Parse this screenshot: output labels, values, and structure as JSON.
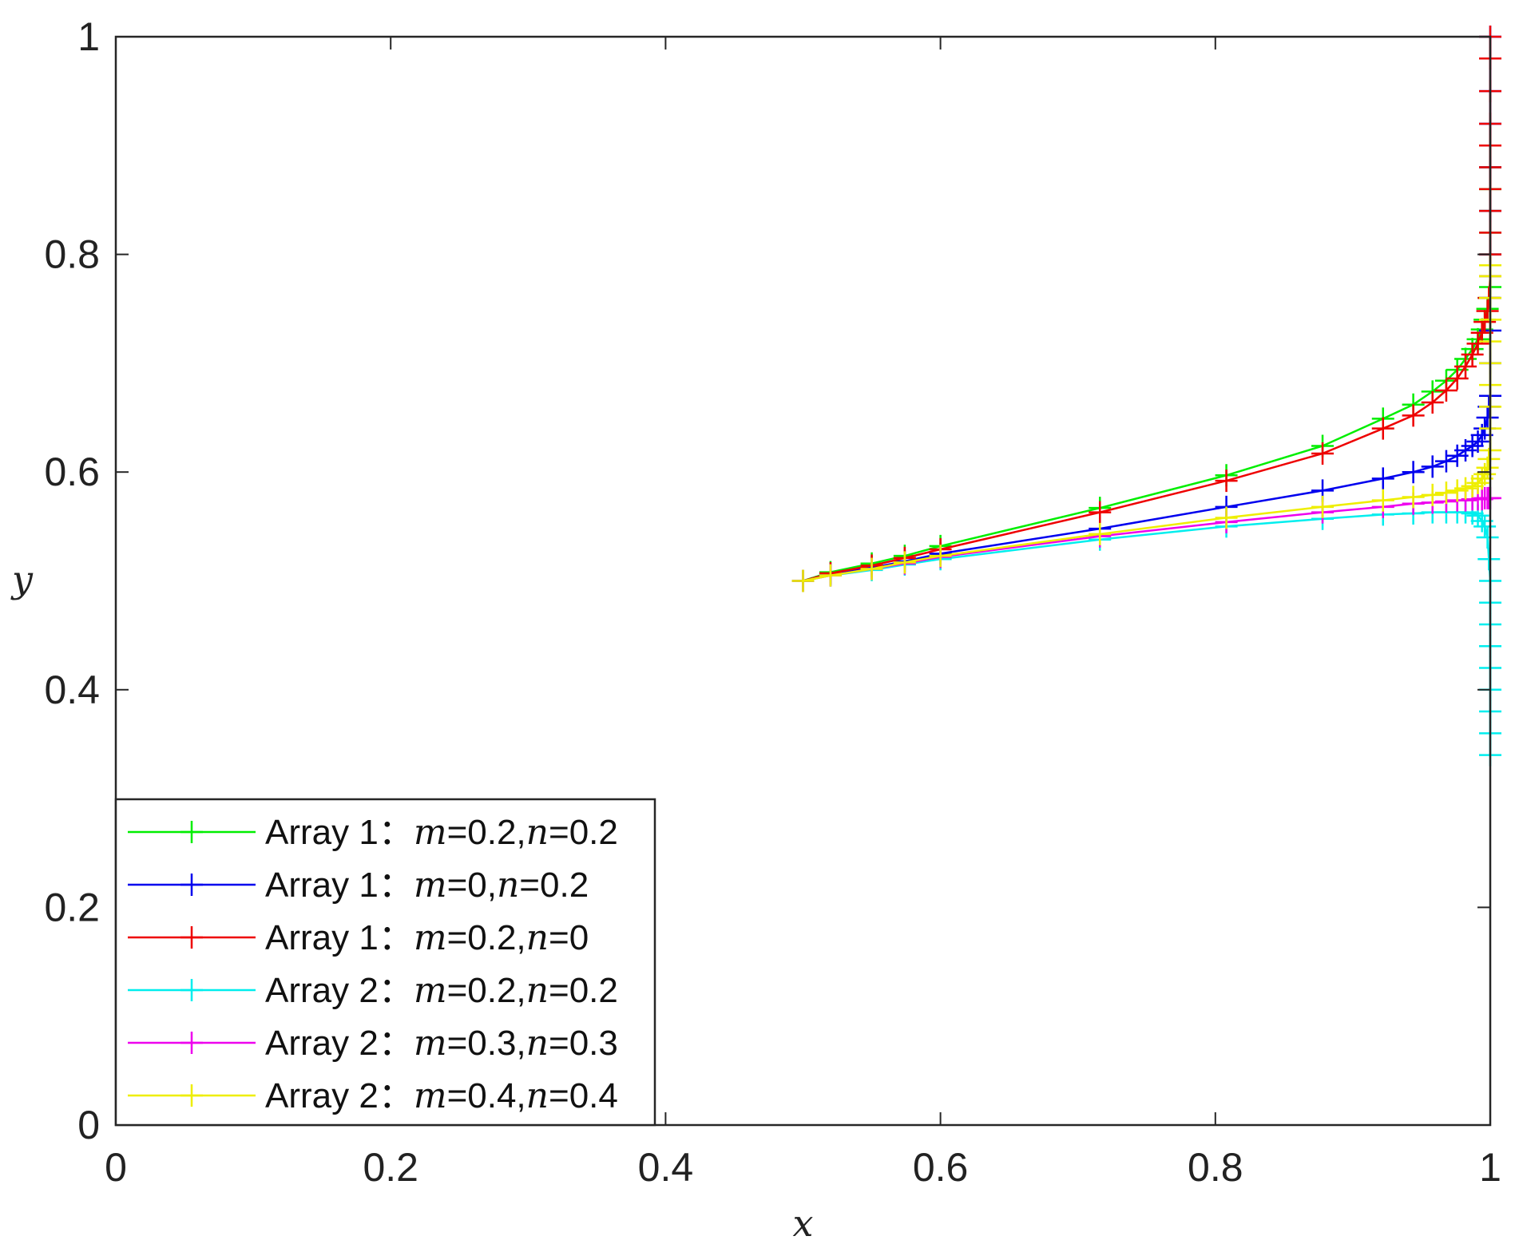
{
  "chart_data": {
    "type": "line",
    "xlabel": "x",
    "ylabel": "y",
    "xlim": [
      0,
      1
    ],
    "ylim": [
      0,
      1
    ],
    "xticks": [
      "0",
      "0.2",
      "0.4",
      "0.6",
      "0.8",
      "1"
    ],
    "yticks": [
      "0",
      "0.2",
      "0.4",
      "0.6",
      "0.8",
      "1"
    ],
    "grid": false,
    "marker": "+",
    "legend_position": "bottom-left",
    "series": [
      {
        "name": "Array 1：m=0.2,n=0.2",
        "label_prefix": "Array 1：",
        "m": "0.2",
        "n": "0.2",
        "color": "#00ee00",
        "x": [
          0.5,
          0.52,
          0.55,
          0.574,
          0.6,
          0.716,
          0.808,
          0.878,
          0.922,
          0.944,
          0.958,
          0.968,
          0.976,
          0.982,
          0.987,
          0.991,
          0.994,
          0.996,
          0.998,
          0.999,
          1.0,
          1.0,
          1.0,
          1.0,
          1.0,
          1.0,
          1.0,
          1.0,
          1.0
        ],
        "y": [
          0.5,
          0.508,
          0.516,
          0.523,
          0.532,
          0.567,
          0.597,
          0.624,
          0.649,
          0.662,
          0.674,
          0.684,
          0.694,
          0.704,
          0.713,
          0.722,
          0.731,
          0.74,
          0.75,
          0.76,
          0.77,
          0.78,
          0.79,
          0.8,
          0.82,
          0.84,
          0.86,
          0.88,
          0.9
        ]
      },
      {
        "name": "Array 1：m=0,n=0.2",
        "label_prefix": "Array 1：",
        "m": "0",
        "n": "0.2",
        "color": "#0000ee",
        "x": [
          0.5,
          0.52,
          0.55,
          0.574,
          0.6,
          0.716,
          0.808,
          0.878,
          0.922,
          0.944,
          0.958,
          0.968,
          0.976,
          0.982,
          0.987,
          0.991,
          0.994,
          0.996,
          0.998,
          0.999,
          1.0,
          1.0,
          1.0,
          1.0,
          1.0,
          1.0,
          1.0,
          1.0,
          1.0,
          1.0,
          1.0
        ],
        "y": [
          0.5,
          0.506,
          0.512,
          0.518,
          0.525,
          0.548,
          0.568,
          0.583,
          0.594,
          0.6,
          0.605,
          0.61,
          0.615,
          0.62,
          0.624,
          0.628,
          0.634,
          0.64,
          0.65,
          0.66,
          0.67,
          0.7,
          0.73,
          0.76,
          0.8,
          0.84,
          0.88,
          0.92,
          0.95,
          0.98,
          1.0
        ]
      },
      {
        "name": "Array 1：m=0.2,n=0",
        "label_prefix": "Array 1：",
        "m": "0.2",
        "n": "0",
        "color": "#ee0000",
        "x": [
          0.5,
          0.52,
          0.55,
          0.574,
          0.6,
          0.716,
          0.808,
          0.878,
          0.922,
          0.944,
          0.958,
          0.968,
          0.976,
          0.982,
          0.987,
          0.991,
          0.994,
          0.996,
          0.998,
          0.999,
          1.0,
          1.0,
          1.0,
          1.0,
          1.0,
          1.0,
          1.0,
          1.0,
          1.0,
          1.0,
          1.0
        ],
        "y": [
          0.5,
          0.507,
          0.514,
          0.521,
          0.529,
          0.563,
          0.592,
          0.617,
          0.64,
          0.652,
          0.664,
          0.675,
          0.686,
          0.697,
          0.708,
          0.718,
          0.728,
          0.738,
          0.748,
          0.76,
          0.78,
          0.8,
          0.82,
          0.84,
          0.86,
          0.88,
          0.9,
          0.92,
          0.95,
          0.98,
          1.0
        ]
      },
      {
        "name": "Array 2：m=0.2,n=0.2",
        "label_prefix": "Array 2：",
        "m": "0.2",
        "n": "0.2",
        "color": "#00eeee",
        "x": [
          0.5,
          0.52,
          0.55,
          0.574,
          0.6,
          0.716,
          0.808,
          0.878,
          0.922,
          0.944,
          0.958,
          0.968,
          0.976,
          0.982,
          0.987,
          0.991,
          0.994,
          0.996,
          0.998,
          0.999,
          1.0,
          1.0,
          1.0,
          1.0,
          1.0,
          1.0,
          1.0,
          1.0,
          1.0
        ],
        "y": [
          0.5,
          0.505,
          0.51,
          0.515,
          0.52,
          0.538,
          0.55,
          0.557,
          0.561,
          0.562,
          0.563,
          0.563,
          0.563,
          0.563,
          0.562,
          0.56,
          0.555,
          0.55,
          0.54,
          0.52,
          0.5,
          0.48,
          0.46,
          0.44,
          0.42,
          0.4,
          0.38,
          0.36,
          0.34
        ]
      },
      {
        "name": "Array 2：m=0.3,n=0.3",
        "label_prefix": "Array 2：",
        "m": "0.3",
        "n": "0.3",
        "color": "#ee00ee",
        "x": [
          0.5,
          0.52,
          0.55,
          0.574,
          0.6,
          0.716,
          0.808,
          0.878,
          0.922,
          0.944,
          0.958,
          0.968,
          0.976,
          0.982,
          0.987,
          0.991,
          0.994,
          0.996,
          0.998,
          0.999,
          1.0
        ],
        "y": [
          0.5,
          0.505,
          0.511,
          0.516,
          0.522,
          0.541,
          0.554,
          0.563,
          0.568,
          0.571,
          0.572,
          0.573,
          0.574,
          0.574,
          0.575,
          0.575,
          0.575,
          0.576,
          0.576,
          0.576,
          0.576
        ]
      },
      {
        "name": "Array 2：m=0.4,n=0.4",
        "label_prefix": "Array 2：",
        "m": "0.4",
        "n": "0.4",
        "color": "#eeee00",
        "x": [
          0.5,
          0.52,
          0.55,
          0.574,
          0.6,
          0.716,
          0.808,
          0.878,
          0.922,
          0.944,
          0.958,
          0.968,
          0.976,
          0.982,
          0.987,
          0.991,
          0.994,
          0.996,
          0.998,
          0.999,
          1.0,
          1.0,
          1.0,
          1.0,
          1.0,
          1.0,
          1.0,
          1.0,
          1.0,
          1.0
        ],
        "y": [
          0.5,
          0.505,
          0.511,
          0.517,
          0.523,
          0.543,
          0.558,
          0.568,
          0.574,
          0.577,
          0.579,
          0.581,
          0.583,
          0.585,
          0.587,
          0.59,
          0.594,
          0.598,
          0.604,
          0.612,
          0.62,
          0.64,
          0.66,
          0.68,
          0.7,
          0.72,
          0.74,
          0.76,
          0.78,
          0.79
        ]
      }
    ]
  }
}
